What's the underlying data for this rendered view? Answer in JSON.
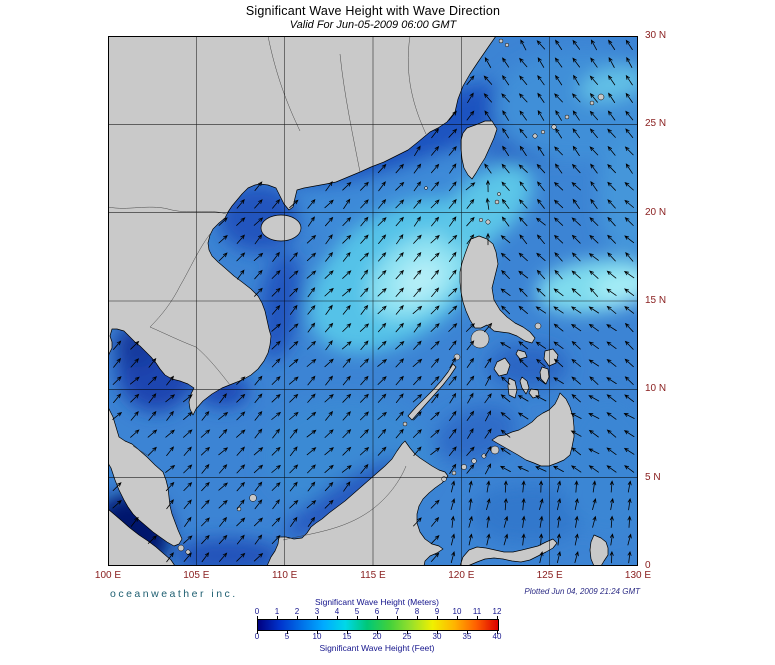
{
  "header": {
    "title": "Significant Wave Height with Wave Direction",
    "subtitle": "Valid For Jun-05-2009 06:00 GMT"
  },
  "map": {
    "lon_ticks": [
      "100 E",
      "105 E",
      "110 E",
      "115 E",
      "120 E",
      "125 E",
      "130 E"
    ],
    "lat_ticks": [
      "30 N",
      "25 N",
      "20 N",
      "15 N",
      "10 N",
      "5 N",
      "0"
    ],
    "lon_range": [
      100,
      130
    ],
    "lat_range": [
      0,
      30
    ],
    "grid_interval_degrees": 5
  },
  "footer": {
    "brand": "oceanweather inc.",
    "plotted": "Plotted Jun 04, 2009 21:24 GMT"
  },
  "legend": {
    "meters_title": "Significant Wave Height (Meters)",
    "feet_title": "Significant Wave Height (Feet)",
    "meters_ticks": [
      "0",
      "1",
      "2",
      "3",
      "4",
      "5",
      "6",
      "7",
      "8",
      "9",
      "10",
      "11",
      "12"
    ],
    "feet_ticks": [
      "0",
      "5",
      "10",
      "15",
      "20",
      "25",
      "30",
      "35",
      "40"
    ],
    "gradient_stops": [
      "#000080",
      "#0033cc",
      "#0070e8",
      "#00aaff",
      "#00d8e8",
      "#00c878",
      "#40d03c",
      "#96e02c",
      "#f0f000",
      "#ffb400",
      "#ff6000",
      "#dc0000"
    ]
  },
  "colors": {
    "title_text": "#000000",
    "axis_label": "#8a2020",
    "legend_text": "#14148c",
    "brand_text": "#1d5e70",
    "plotted_text": "#2b2b85",
    "land": "#c9c9c9",
    "coastline": "#000000",
    "ocean_base": "#3c84d4",
    "arrow": "#000000"
  }
}
